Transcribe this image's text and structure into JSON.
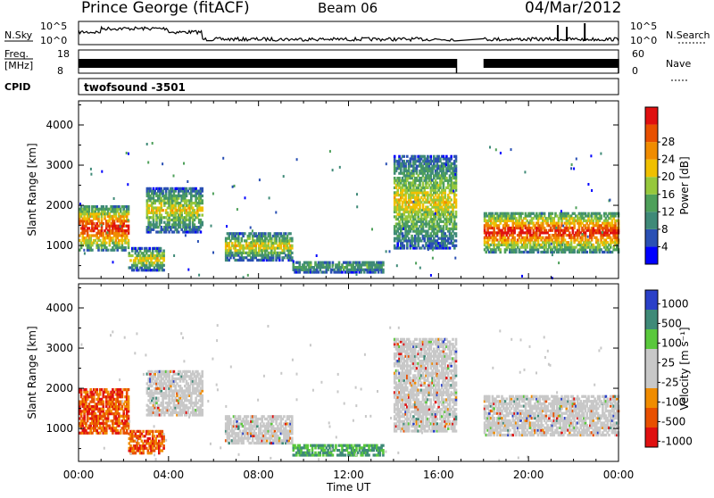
{
  "header": {
    "station": "Prince George (fitACF)",
    "beam": "Beam 06",
    "date": "04/Mar/2012"
  },
  "summary_panels": {
    "nsky_label": "N.Sky",
    "nsky_ticks": [
      "10^5",
      "10^0"
    ],
    "nsearch_label": "N.Search",
    "nsearch_ticks": [
      "10^5",
      "10^0"
    ],
    "freq_label": "Freq.",
    "freq_unit": "[MHz]",
    "freq_ticks": [
      "18",
      "8"
    ],
    "nave_label": "Nave",
    "nave_ticks": [
      "60",
      "0"
    ],
    "cpid_label": "CPID",
    "cpid_value": "twofsound  -3501"
  },
  "colors": {
    "power_scale": [
      "#0000ff",
      "#2a50b4",
      "#3f8a78",
      "#4ea05a",
      "#96c83c",
      "#f0c000",
      "#f08c00",
      "#e85000",
      "#e01010"
    ],
    "velocity_scale": [
      "#2a40c8",
      "#3f8a78",
      "#5ac83c",
      "#c8c8c8",
      "#c8c8c8",
      "#f08c00",
      "#e85000",
      "#e01010"
    ]
  },
  "chart_data": [
    {
      "type": "heatmap",
      "title": "",
      "xlabel": "Time UT",
      "ylabel": "Slant Range [km]",
      "x_ticks": [
        "00:00",
        "04:00",
        "08:00",
        "12:00",
        "16:00",
        "20:00",
        "00:00"
      ],
      "y_ticks": [
        "1000",
        "2000",
        "3000",
        "4000"
      ],
      "xlim_hours": [
        0,
        24
      ],
      "ylim_km": [
        180,
        4600
      ],
      "colorbar_label": "Power [dB]",
      "colorbar_ticks": [
        "4",
        "8",
        "12",
        "16",
        "20",
        "24",
        "28"
      ],
      "data_gap_hours": [
        16.8,
        18.0
      ],
      "regions": [
        {
          "t": [
            0.0,
            2.2
          ],
          "r": [
            850,
            1950
          ],
          "level": "high"
        },
        {
          "t": [
            2.2,
            3.8
          ],
          "r": [
            350,
            900
          ],
          "level": "mid"
        },
        {
          "t": [
            3.0,
            5.5
          ],
          "r": [
            1300,
            2400
          ],
          "level": "mid"
        },
        {
          "t": [
            6.5,
            9.5
          ],
          "r": [
            600,
            1300
          ],
          "level": "mid"
        },
        {
          "t": [
            9.5,
            13.5
          ],
          "r": [
            300,
            600
          ],
          "level": "low"
        },
        {
          "t": [
            14.0,
            16.8
          ],
          "r": [
            900,
            3200
          ],
          "level": "mid"
        },
        {
          "t": [
            18.0,
            24.0
          ],
          "r": [
            800,
            1800
          ],
          "level": "high"
        }
      ]
    },
    {
      "type": "heatmap",
      "title": "",
      "xlabel": "Time UT",
      "ylabel": "Slant Range [km]",
      "x_ticks": [
        "00:00",
        "04:00",
        "08:00",
        "12:00",
        "16:00",
        "20:00",
        "00:00"
      ],
      "y_ticks": [
        "1000",
        "2000",
        "3000",
        "4000"
      ],
      "xlim_hours": [
        0,
        24
      ],
      "ylim_km": [
        180,
        4600
      ],
      "colorbar_label": "Velocity [m s⁻¹]",
      "colorbar_ticks": [
        "1000",
        "500",
        "100",
        "25",
        "-25",
        "-100",
        "-500",
        "-1000"
      ],
      "data_gap_hours": [
        16.8,
        18.0
      ],
      "regions": [
        {
          "t": [
            0.0,
            2.2
          ],
          "r": [
            850,
            1950
          ],
          "level": "negative"
        },
        {
          "t": [
            2.2,
            3.8
          ],
          "r": [
            350,
            900
          ],
          "level": "negative"
        },
        {
          "t": [
            3.0,
            5.5
          ],
          "r": [
            1300,
            2400
          ],
          "level": "ground"
        },
        {
          "t": [
            6.5,
            9.5
          ],
          "r": [
            600,
            1300
          ],
          "level": "ground"
        },
        {
          "t": [
            9.5,
            13.5
          ],
          "r": [
            300,
            600
          ],
          "level": "positive"
        },
        {
          "t": [
            14.0,
            16.8
          ],
          "r": [
            900,
            3200
          ],
          "level": "ground"
        },
        {
          "t": [
            18.0,
            24.0
          ],
          "r": [
            800,
            1800
          ],
          "level": "ground"
        }
      ]
    }
  ]
}
